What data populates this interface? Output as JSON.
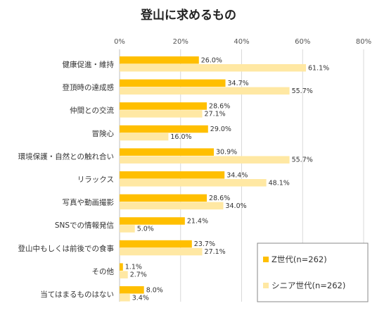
{
  "chart_data": {
    "type": "bar",
    "orientation": "horizontal",
    "title": "登山に求めるもの",
    "categories": [
      "健康促進・維持",
      "登頂時の達成感",
      "仲間との交流",
      "冒険心",
      "環境保護・自然との触れ合い",
      "リラックス",
      "写真や動画撮影",
      "SNSでの情報発信",
      "登山中もしくは前後での食事",
      "その他",
      "当てはまるものはない"
    ],
    "series": [
      {
        "name": "Z世代(n=262)",
        "color": "#FFBF00",
        "values": [
          26.0,
          34.7,
          28.6,
          29.0,
          30.9,
          34.4,
          28.6,
          21.4,
          23.7,
          1.1,
          8.0
        ],
        "labels": [
          "26.0%",
          "34.7%",
          "28.6%",
          "29.0%",
          "30.9%",
          "34.4%",
          "28.6%",
          "21.4%",
          "23.7%",
          "1.1%",
          "8.0%"
        ]
      },
      {
        "name": "シニア世代(n=262)",
        "color": "#FFE8A3",
        "values": [
          61.1,
          55.7,
          27.1,
          16.0,
          55.7,
          48.1,
          34.0,
          5.0,
          27.1,
          2.7,
          3.4
        ],
        "labels": [
          "61.1%",
          "55.7%",
          "27.1%",
          "16.0%",
          "55.7%",
          "48.1%",
          "34.0%",
          "5.0%",
          "27.1%",
          "2.7%",
          "3.4%"
        ]
      }
    ],
    "xlim": [
      0,
      80
    ],
    "xticks": [
      "0%",
      "20%",
      "40%",
      "60%",
      "80%"
    ],
    "xtick_values": [
      0,
      20,
      40,
      60,
      80
    ],
    "grid": true,
    "legend_position": "bottom-right"
  }
}
